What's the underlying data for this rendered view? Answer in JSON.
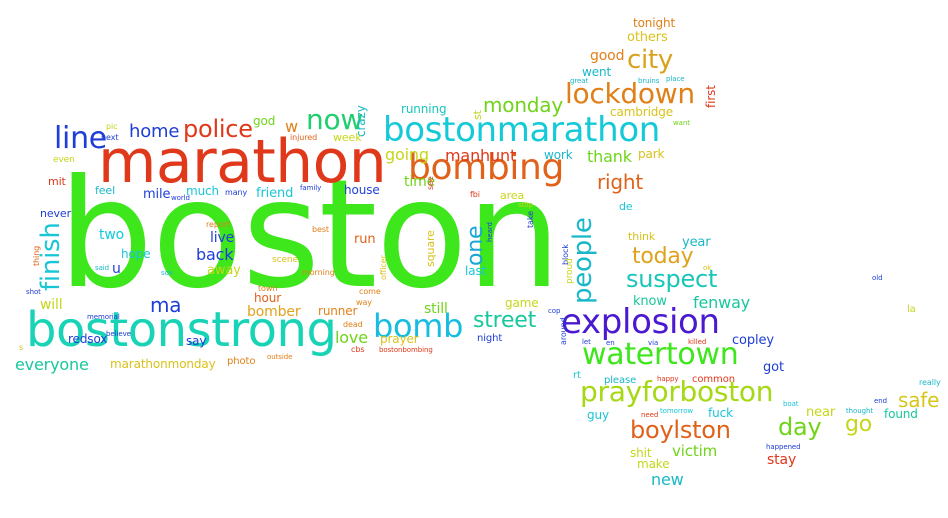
{
  "words": [
    {
      "text": "boston",
      "color": "#3ee61c"
    },
    {
      "text": "marathon",
      "color": "#e0381a"
    },
    {
      "text": "bostonstrong",
      "color": "#19d3b7"
    },
    {
      "text": "bostonmarathon",
      "color": "#14c9d8"
    },
    {
      "text": "bombing",
      "color": "#e0621a"
    },
    {
      "text": "explosion",
      "color": "#4a19d0"
    },
    {
      "text": "watertown",
      "color": "#3ee61c"
    },
    {
      "text": "prayforboston",
      "color": "#a6d816"
    },
    {
      "text": "bomb",
      "color": "#16bde0"
    },
    {
      "text": "lockdown",
      "color": "#e08019"
    },
    {
      "text": "now",
      "color": "#1fcf6e"
    },
    {
      "text": "line",
      "color": "#1f3ed6"
    },
    {
      "text": "police",
      "color": "#e0381a"
    },
    {
      "text": "finish",
      "color": "#19c6d6"
    },
    {
      "text": "people",
      "color": "#19b7c9"
    },
    {
      "text": "one",
      "color": "#1aa6d6"
    },
    {
      "text": "street",
      "color": "#19c79c"
    },
    {
      "text": "suspect",
      "color": "#19c6b9"
    },
    {
      "text": "city",
      "color": "#d9a21b"
    },
    {
      "text": "today",
      "color": "#e0a21b"
    },
    {
      "text": "monday",
      "color": "#6fd41a"
    },
    {
      "text": "home",
      "color": "#1f3ed6"
    },
    {
      "text": "ma",
      "color": "#1f3ed6"
    },
    {
      "text": "boylston",
      "color": "#e0621a"
    },
    {
      "text": "day",
      "color": "#6fd41a"
    },
    {
      "text": "right",
      "color": "#e0621a"
    },
    {
      "text": "go",
      "color": "#c6d619"
    },
    {
      "text": "safe",
      "color": "#d6c619"
    },
    {
      "text": "going",
      "color": "#c6d619"
    },
    {
      "text": "manhunt",
      "color": "#e0381a"
    },
    {
      "text": "thank",
      "color": "#6fd41a"
    },
    {
      "text": "back",
      "color": "#1f3ed6"
    },
    {
      "text": "live",
      "color": "#1f3ed6"
    },
    {
      "text": "two",
      "color": "#14c9d8"
    },
    {
      "text": "time",
      "color": "#6fd41a"
    },
    {
      "text": "fenway",
      "color": "#19c79c"
    },
    {
      "text": "love",
      "color": "#6fd41a"
    },
    {
      "text": "will",
      "color": "#c6d619"
    },
    {
      "text": "everyone",
      "color": "#19c79c"
    },
    {
      "text": "victim",
      "color": "#6fd41a"
    },
    {
      "text": "new",
      "color": "#19b7c9"
    },
    {
      "text": "stay",
      "color": "#e0381a"
    },
    {
      "text": "bomber",
      "color": "#e0a21b"
    },
    {
      "text": "still",
      "color": "#6fd41a"
    },
    {
      "text": "mile",
      "color": "#1f3ed6"
    },
    {
      "text": "house",
      "color": "#1f3ed6"
    },
    {
      "text": "u",
      "color": "#1f3ed6"
    },
    {
      "text": "w",
      "color": "#e08019"
    },
    {
      "text": "good",
      "color": "#e08019"
    },
    {
      "text": "copley",
      "color": "#1f3ed6"
    },
    {
      "text": "got",
      "color": "#1f3ed6"
    },
    {
      "text": "know",
      "color": "#19c79c"
    },
    {
      "text": "year",
      "color": "#19b7c9"
    },
    {
      "text": "near",
      "color": "#c6d619"
    },
    {
      "text": "found",
      "color": "#19c79c"
    },
    {
      "text": "make",
      "color": "#c6d619"
    },
    {
      "text": "shit",
      "color": "#c6d619"
    },
    {
      "text": "guy",
      "color": "#19c6d6"
    },
    {
      "text": "fuck",
      "color": "#19c6d6"
    },
    {
      "text": "tonight",
      "color": "#e08019"
    },
    {
      "text": "others",
      "color": "#d9c21b"
    },
    {
      "text": "went",
      "color": "#19b7c9"
    },
    {
      "text": "running",
      "color": "#19c6b9"
    },
    {
      "text": "st",
      "color": "#c6d619"
    },
    {
      "text": "first",
      "color": "#e0381a"
    },
    {
      "text": "cambridge",
      "color": "#d9c21b"
    },
    {
      "text": "park",
      "color": "#d9c21b"
    },
    {
      "text": "work",
      "color": "#19b7c9"
    },
    {
      "text": "crazy",
      "color": "#19b7c9"
    },
    {
      "text": "week",
      "color": "#c6d619"
    },
    {
      "text": "god",
      "color": "#6fd41a"
    },
    {
      "text": "feel",
      "color": "#19b7c9"
    },
    {
      "text": "much",
      "color": "#19c6d6"
    },
    {
      "text": "friend",
      "color": "#19c6d6"
    },
    {
      "text": "run",
      "color": "#e0621a"
    },
    {
      "text": "area",
      "color": "#c6d619"
    },
    {
      "text": "de",
      "color": "#19c6d6"
    },
    {
      "text": "think",
      "color": "#d9c21b"
    },
    {
      "text": "hope",
      "color": "#19c6d6"
    },
    {
      "text": "away",
      "color": "#c6d619"
    },
    {
      "text": "say",
      "color": "#1f3ed6"
    },
    {
      "text": "hour",
      "color": "#e0621a"
    },
    {
      "text": "runner",
      "color": "#e08019"
    },
    {
      "text": "square",
      "color": "#d9c21b"
    },
    {
      "text": "last",
      "color": "#19c6d6"
    },
    {
      "text": "game",
      "color": "#c6d619"
    },
    {
      "text": "night",
      "color": "#1f3ed6"
    },
    {
      "text": "prayer",
      "color": "#d9c21b"
    },
    {
      "text": "redsox",
      "color": "#1f3ed6"
    },
    {
      "text": "marathonmonday",
      "color": "#d9c21b"
    },
    {
      "text": "please",
      "color": "#19b7c9"
    },
    {
      "text": "common",
      "color": "#e0381a"
    },
    {
      "text": "rt",
      "color": "#19c6d6"
    },
    {
      "text": "never",
      "color": "#1f3ed6"
    },
    {
      "text": "mit",
      "color": "#e0381a"
    },
    {
      "text": "even",
      "color": "#c6d619"
    },
    {
      "text": "next",
      "color": "#1f3ed6"
    },
    {
      "text": "pic",
      "color": "#c6d619"
    },
    {
      "text": "injured",
      "color": "#e0621a"
    },
    {
      "text": "family",
      "color": "#1f3ed6"
    },
    {
      "text": "many",
      "color": "#1f3ed6"
    },
    {
      "text": "world",
      "color": "#1f3ed6"
    },
    {
      "text": "report",
      "color": "#e08019"
    },
    {
      "text": "best",
      "color": "#e08019"
    },
    {
      "text": "scene",
      "color": "#d9c21b"
    },
    {
      "text": "morning",
      "color": "#e08019"
    },
    {
      "text": "officer",
      "color": "#d9c21b"
    },
    {
      "text": "town",
      "color": "#e08019"
    },
    {
      "text": "come",
      "color": "#e08019"
    },
    {
      "text": "way",
      "color": "#e08019"
    },
    {
      "text": "dead",
      "color": "#e08019"
    },
    {
      "text": "cbs",
      "color": "#e0381a"
    },
    {
      "text": "bostonbombing",
      "color": "#e0381a"
    },
    {
      "text": "see",
      "color": "#e0381a"
    },
    {
      "text": "fbi",
      "color": "#e0381a"
    },
    {
      "text": "stop",
      "color": "#c6d619"
    },
    {
      "text": "take",
      "color": "#1f3ed6"
    },
    {
      "text": "heard",
      "color": "#1f3ed6"
    },
    {
      "text": "block",
      "color": "#1f3ed6"
    },
    {
      "text": "proud",
      "color": "#c6d619"
    },
    {
      "text": "cop",
      "color": "#1f3ed6"
    },
    {
      "text": "around",
      "color": "#1f3ed6"
    },
    {
      "text": "let",
      "color": "#1f3ed6"
    },
    {
      "text": "en",
      "color": "#1f3ed6"
    },
    {
      "text": "via",
      "color": "#1f3ed6"
    },
    {
      "text": "killed",
      "color": "#e0381a"
    },
    {
      "text": "happy",
      "color": "#e0381a"
    },
    {
      "text": "need",
      "color": "#e0381a"
    },
    {
      "text": "tomorrow",
      "color": "#19c6d6"
    },
    {
      "text": "happened",
      "color": "#1f3ed6"
    },
    {
      "text": "boat",
      "color": "#19c6d6"
    },
    {
      "text": "thought",
      "color": "#19b7c9"
    },
    {
      "text": "end",
      "color": "#1f3ed6"
    },
    {
      "text": "really",
      "color": "#19b7c9"
    },
    {
      "text": "la",
      "color": "#c6d619"
    },
    {
      "text": "old",
      "color": "#1f3ed6"
    },
    {
      "text": "ok",
      "color": "#d9c21b"
    },
    {
      "text": "great",
      "color": "#19b7c9"
    },
    {
      "text": "bruins",
      "color": "#19b7c9"
    },
    {
      "text": "place",
      "color": "#19b7c9"
    },
    {
      "text": "want",
      "color": "#6fd41a"
    },
    {
      "text": "thing",
      "color": "#e0621a"
    },
    {
      "text": "said",
      "color": "#19b7c9"
    },
    {
      "text": "shot",
      "color": "#1f3ed6"
    },
    {
      "text": "s",
      "color": "#d9c21b"
    },
    {
      "text": "sox",
      "color": "#19b7c9"
    },
    {
      "text": "memorial",
      "color": "#1f3ed6"
    },
    {
      "text": "believe",
      "color": "#1f3ed6"
    },
    {
      "text": "photo",
      "color": "#e08019"
    },
    {
      "text": "outside",
      "color": "#e08019"
    }
  ]
}
